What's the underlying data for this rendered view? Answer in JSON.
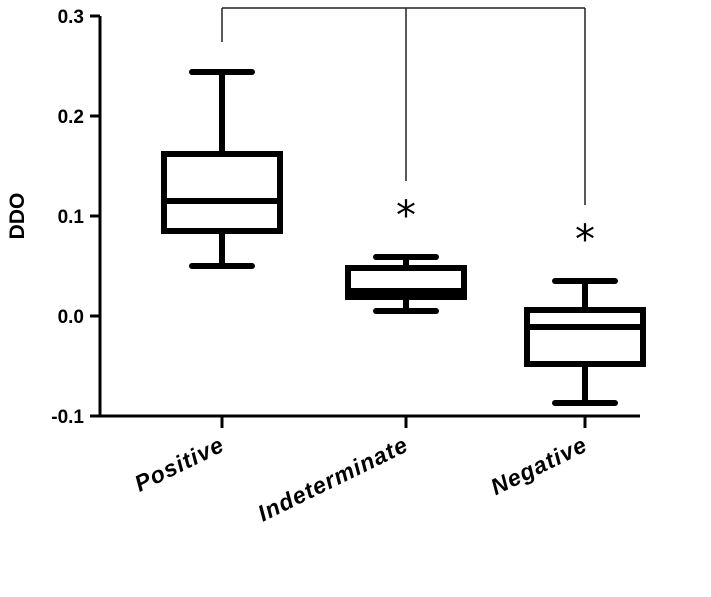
{
  "chart_data": {
    "type": "box",
    "ylabel": "DDO",
    "ylim": [
      -0.1,
      0.3
    ],
    "yticks": [
      "-0.1",
      "0.0",
      "0.1",
      "0.2",
      "0.3"
    ],
    "ytick_values": [
      -0.1,
      0.0,
      0.1,
      0.2,
      0.3
    ],
    "categories": [
      "Positive",
      "Indeterminate",
      "Negative"
    ],
    "boxes": [
      {
        "category": "Positive",
        "min": 0.05,
        "q1": 0.085,
        "median": 0.115,
        "q3": 0.162,
        "max": 0.244
      },
      {
        "category": "Indeterminate",
        "min": 0.005,
        "q1": 0.019,
        "median": 0.025,
        "q3": 0.048,
        "max": 0.059
      },
      {
        "category": "Negative",
        "min": -0.087,
        "q1": -0.048,
        "median": -0.011,
        "q3": 0.006,
        "max": 0.035
      }
    ],
    "significance": {
      "reference": "Positive",
      "marked": [
        "Indeterminate",
        "Negative"
      ],
      "symbol": "*"
    },
    "grid": false,
    "legend": "none"
  }
}
